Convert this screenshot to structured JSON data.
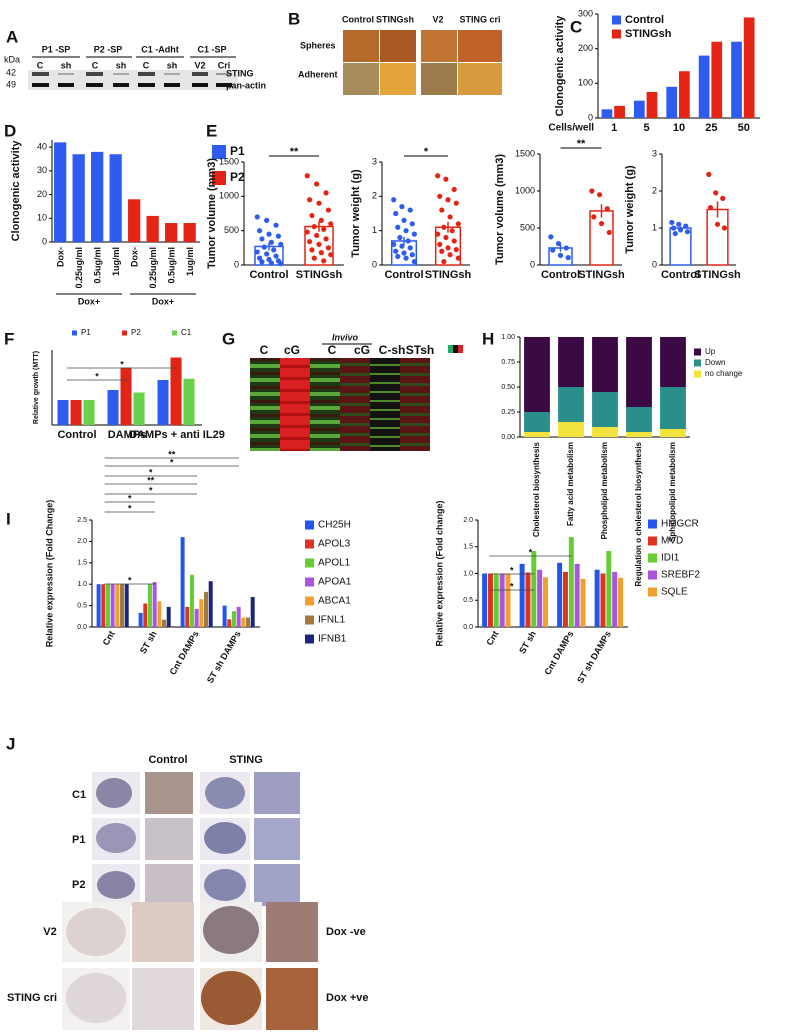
{
  "panels": {
    "A": {
      "label": "A",
      "unit": "kDa",
      "sizes": [
        42,
        49
      ],
      "groups": [
        "P1 -SP",
        "P2 -SP",
        "C1 -Adht",
        "C1 -SP"
      ],
      "lanes": [
        "C",
        "sh",
        "C",
        "sh",
        "C",
        "sh",
        "V2",
        "Cri"
      ],
      "proteins": [
        "STING",
        "pan-actin"
      ]
    },
    "B": {
      "label": "B",
      "columns": [
        "Control",
        "STINGsh",
        "V2",
        "STING cri"
      ],
      "rows": [
        "Spheres",
        "Adherent"
      ]
    },
    "G": {
      "label": "G",
      "group": "Invivo",
      "columns": [
        "C",
        "cG",
        "C",
        "cG",
        "C-sh",
        "STsh"
      ]
    },
    "J": {
      "label": "J",
      "columns": [
        "Control",
        "STING"
      ],
      "rows": [
        "C1",
        "P1",
        "P2"
      ],
      "rows2": [
        "V2",
        "STING cri"
      ],
      "conditions": [
        "Dox -ve",
        "Dox +ve"
      ]
    }
  },
  "chart_data": [
    {
      "label": "C",
      "type": "bar",
      "y_label": "Clonogenic activity",
      "x_label": "Cells/well",
      "categories": [
        1,
        5,
        10,
        25,
        50
      ],
      "series": [
        {
          "name": "Control",
          "color": "#2e5cf0",
          "values": [
            25,
            50,
            90,
            180,
            220
          ]
        },
        {
          "name": "STINGsh",
          "color": "#e42515",
          "values": [
            35,
            75,
            135,
            220,
            290
          ]
        }
      ],
      "ylim": [
        0,
        300
      ],
      "yticks": [
        0,
        100,
        200,
        300
      ]
    },
    {
      "label": "D",
      "type": "bar",
      "y_label": "Clonogenic activity",
      "categories": [
        "Dox-",
        "0.25ug/ml",
        "0.5ug/ml",
        "1ug/ml",
        "Dox-",
        "0.25ug/ml",
        "0.5ug/ml",
        "1ug/ml"
      ],
      "group_labels": [
        "Dox+",
        "Dox+"
      ],
      "series": [
        {
          "name": "P1",
          "color": "#2e5cf0",
          "values": [
            42,
            37,
            38,
            37,
            null,
            null,
            null,
            null
          ]
        },
        {
          "name": "P2",
          "color": "#e42515",
          "values": [
            null,
            null,
            null,
            null,
            18,
            11,
            8,
            8
          ]
        }
      ],
      "ylim": [
        0,
        43
      ],
      "yticks": [
        0,
        10,
        20,
        30,
        40
      ]
    },
    {
      "label": "E",
      "type": "dotbar",
      "y_label": "Tumor volume (mm3)",
      "categories": [
        "Control",
        "STINGsh"
      ],
      "colors": [
        "#2e5cf0",
        "#e42515"
      ],
      "values": [
        270,
        560
      ],
      "errors": [
        60,
        75
      ],
      "points": [
        [
          700,
          650,
          580,
          500,
          450,
          420,
          380,
          330,
          300,
          260,
          220,
          190,
          160,
          130,
          100,
          80,
          60,
          45,
          30,
          20
        ],
        [
          1300,
          1180,
          1050,
          950,
          900,
          800,
          720,
          650,
          600,
          560,
          520,
          480,
          430,
          380,
          340,
          300,
          250,
          220,
          180,
          150,
          100,
          60
        ]
      ],
      "annotations": [
        "**"
      ],
      "ylim": [
        0,
        1500
      ],
      "yticks": [
        0,
        500,
        1000,
        1500
      ]
    },
    {
      "type": "dotbar",
      "y_label": "Tumor weight (g)",
      "categories": [
        "Control",
        "STINGsh"
      ],
      "colors": [
        "#2e5cf0",
        "#e42515"
      ],
      "values": [
        0.7,
        1.1
      ],
      "errors": [
        0.12,
        0.16
      ],
      "points": [
        [
          1.9,
          1.7,
          1.6,
          1.5,
          1.3,
          1.2,
          1.1,
          1.0,
          0.9,
          0.8,
          0.7,
          0.6,
          0.55,
          0.5,
          0.4,
          0.35,
          0.3,
          0.25,
          0.2,
          0.1
        ],
        [
          2.6,
          2.5,
          2.2,
          2.0,
          1.9,
          1.8,
          1.6,
          1.4,
          1.2,
          1.1,
          1.0,
          0.9,
          0.8,
          0.7,
          0.6,
          0.5,
          0.45,
          0.4,
          0.3,
          0.2,
          0.1
        ]
      ],
      "annotations": [
        "*"
      ],
      "ylim": [
        0,
        3
      ],
      "yticks": [
        0,
        1,
        2,
        3
      ]
    },
    {
      "type": "dotbar",
      "y_label": "Tumor volume (mm3)",
      "categories": [
        "Control",
        "STINGsh"
      ],
      "colors": [
        "#2e5cf0",
        "#e42515"
      ],
      "values": [
        230,
        730
      ],
      "errors": [
        50,
        90
      ],
      "points": [
        [
          380,
          290,
          230,
          200,
          130,
          100
        ],
        [
          1000,
          950,
          760,
          650,
          560,
          440
        ]
      ],
      "annotations": [
        "**"
      ],
      "ylim": [
        0,
        1500
      ],
      "yticks": [
        0,
        500,
        1000,
        1500
      ]
    },
    {
      "type": "dotbar",
      "y_label": "Tumor weight (g)",
      "categories": [
        "Control",
        "STINGsh"
      ],
      "colors": [
        "#2e5cf0",
        "#e42515"
      ],
      "values": [
        1.0,
        1.5
      ],
      "errors": [
        0.04,
        0.22
      ],
      "points": [
        [
          1.15,
          1.1,
          1.05,
          1.0,
          0.95,
          0.9,
          0.85
        ],
        [
          2.45,
          1.95,
          1.8,
          1.55,
          1.1,
          1.0
        ]
      ],
      "ylim": [
        0,
        3
      ],
      "yticks": [
        0,
        1,
        2,
        3
      ]
    },
    {
      "label": "F",
      "type": "bar",
      "y_label": "Relative growth (MTT)",
      "categories": [
        "Control",
        "DAMPs",
        "DAMPs + anti IL29"
      ],
      "series": [
        {
          "name": "P1",
          "color": "#2e5cf0",
          "values": [
            1,
            1.4,
            1.8
          ]
        },
        {
          "name": "P2",
          "color": "#e42515",
          "values": [
            1,
            2.3,
            2.7
          ]
        },
        {
          "name": "C1",
          "color": "#6ad14a",
          "values": [
            1,
            1.3,
            1.85
          ]
        }
      ],
      "annotations": [
        "*",
        "*"
      ],
      "ylim": [
        0,
        3
      ]
    },
    {
      "label": "H",
      "type": "bar",
      "stacked": true,
      "categories": [
        "Cholesterol biosynthesis",
        "Fatty acid metabolism",
        "Phospholipid metabolism",
        "Regulation o cholesterol biosynthesis",
        "Sphinopolipid metabolism"
      ],
      "series": [
        {
          "name": "no change",
          "color": "#f2e33c",
          "values": [
            0.05,
            0.15,
            0.1,
            0.05,
            0.08
          ]
        },
        {
          "name": "Down",
          "color": "#2a8f8a",
          "values": [
            0.2,
            0.35,
            0.35,
            0.25,
            0.42
          ]
        },
        {
          "name": "Up",
          "color": "#3b0a45",
          "values": [
            0.75,
            0.5,
            0.55,
            0.7,
            0.5
          ]
        }
      ],
      "ylim": [
        0,
        1
      ],
      "yticks": [
        {
          "value": 0,
          "label": "0.00"
        },
        {
          "value": 0.25,
          "label": "0.25"
        },
        {
          "value": 0.5,
          "label": "0.50"
        },
        {
          "value": 0.75,
          "label": "0.75"
        },
        {
          "value": 1,
          "label": "1.00"
        }
      ]
    },
    {
      "label": "I",
      "type": "bar",
      "y_label": "Relative expression (Fold Change)",
      "categories": [
        "Cnt",
        "ST sh",
        "Cnt DAMPs",
        "ST sh DAMPs"
      ],
      "series": [
        {
          "name": "CH25H",
          "color": "#2255ee",
          "values": [
            1,
            0.33,
            2.1,
            0.5
          ]
        },
        {
          "name": "APOL3",
          "color": "#dd3322",
          "values": [
            1,
            0.55,
            0.47,
            0.18
          ]
        },
        {
          "name": "APOL1",
          "color": "#66cc33",
          "values": [
            1,
            1.0,
            1.22,
            0.37
          ]
        },
        {
          "name": "APOA1",
          "color": "#aa55dd",
          "values": [
            1,
            1.05,
            0.42,
            0.47
          ]
        },
        {
          "name": "ABCA1",
          "color": "#f0a030",
          "values": [
            1,
            0.6,
            0.65,
            0.22
          ]
        },
        {
          "name": "IFNL1",
          "color": "#a07840",
          "values": [
            1,
            0.17,
            0.82,
            0.22
          ]
        },
        {
          "name": "IFNB1",
          "color": "#1a237e",
          "values": [
            1,
            0.47,
            1.07,
            0.7
          ]
        }
      ],
      "annotations": [
        "**",
        "*",
        "*",
        "**",
        "*",
        "*",
        "*",
        "*"
      ],
      "ylim": [
        0,
        2.5
      ],
      "yticks": [
        {
          "value": 0,
          "label": "0.0"
        },
        {
          "value": 0.5,
          "label": "0.5"
        },
        {
          "value": 1,
          "label": "1.0"
        },
        {
          "value": 1.5,
          "label": "1.5"
        },
        {
          "value": 2,
          "label": "2.0"
        },
        {
          "value": 2.5,
          "label": "2.5"
        }
      ]
    },
    {
      "type": "bar",
      "y_label": "Relative expression (Fold change)",
      "categories": [
        "Cnt",
        "ST sh",
        "Cnt DAMPs",
        "ST sh DAMPs"
      ],
      "series": [
        {
          "name": "HMGCR",
          "color": "#2255ee",
          "values": [
            1,
            1.18,
            1.2,
            1.07
          ]
        },
        {
          "name": "MVD",
          "color": "#dd3322",
          "values": [
            1,
            1.02,
            1.03,
            1.0
          ]
        },
        {
          "name": "IDI1",
          "color": "#66cc33",
          "values": [
            1,
            1.42,
            1.68,
            1.42
          ]
        },
        {
          "name": "SREBF2",
          "color": "#aa55dd",
          "values": [
            1,
            1.07,
            1.18,
            1.03
          ]
        },
        {
          "name": "SQLE",
          "color": "#f0a030",
          "values": [
            1,
            0.93,
            0.9,
            0.92
          ]
        }
      ],
      "annotations": [
        "*",
        "*",
        "*"
      ],
      "ylim": [
        0,
        2
      ],
      "yticks": [
        {
          "value": 0,
          "label": "0.0"
        },
        {
          "value": 0.5,
          "label": "0.5"
        },
        {
          "value": 1,
          "label": "1.0"
        },
        {
          "value": 1.5,
          "label": "1.5"
        },
        {
          "value": 2,
          "label": "2.0"
        }
      ]
    }
  ]
}
